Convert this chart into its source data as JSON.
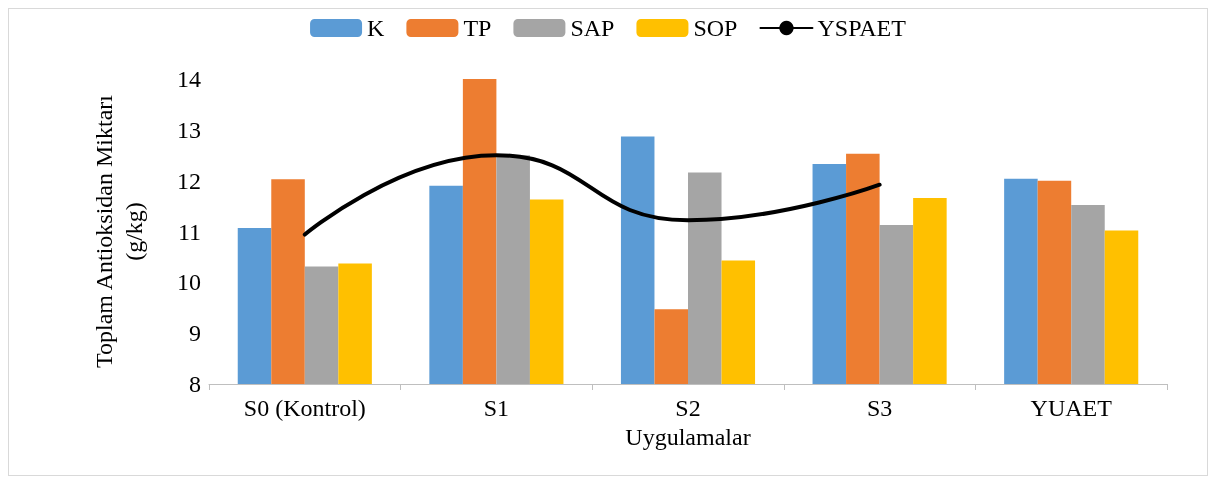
{
  "chart_data": {
    "type": "bar",
    "xlabel": "Uygulamalar",
    "ylabel": "Toplam Antioksidan Miktarı\n(g/kg)",
    "categories": [
      "S0 (Kontrol)",
      "S1",
      "S2",
      "S3",
      "YUAET"
    ],
    "series": [
      {
        "name": "K",
        "color": "#5b9bd5",
        "values": [
          11.07,
          11.9,
          12.87,
          12.33,
          12.04
        ]
      },
      {
        "name": "TP",
        "color": "#ed7d31",
        "values": [
          12.03,
          14.0,
          9.47,
          12.53,
          12.0
        ]
      },
      {
        "name": "SAP",
        "color": "#a5a5a5",
        "values": [
          10.31,
          12.5,
          12.16,
          11.13,
          11.52
        ]
      },
      {
        "name": "SOP",
        "color": "#ffc000",
        "values": [
          10.37,
          11.63,
          10.43,
          11.66,
          11.02
        ]
      },
      {
        "name": "YSPAET",
        "type": "line",
        "color": "#000000",
        "values": [
          10.94,
          12.5,
          11.22,
          11.92,
          null
        ]
      }
    ],
    "ylim": [
      8,
      14
    ],
    "yticks": [
      8,
      9,
      10,
      11,
      12,
      13,
      14
    ],
    "grid": false,
    "legend": "top",
    "marker": "none"
  }
}
